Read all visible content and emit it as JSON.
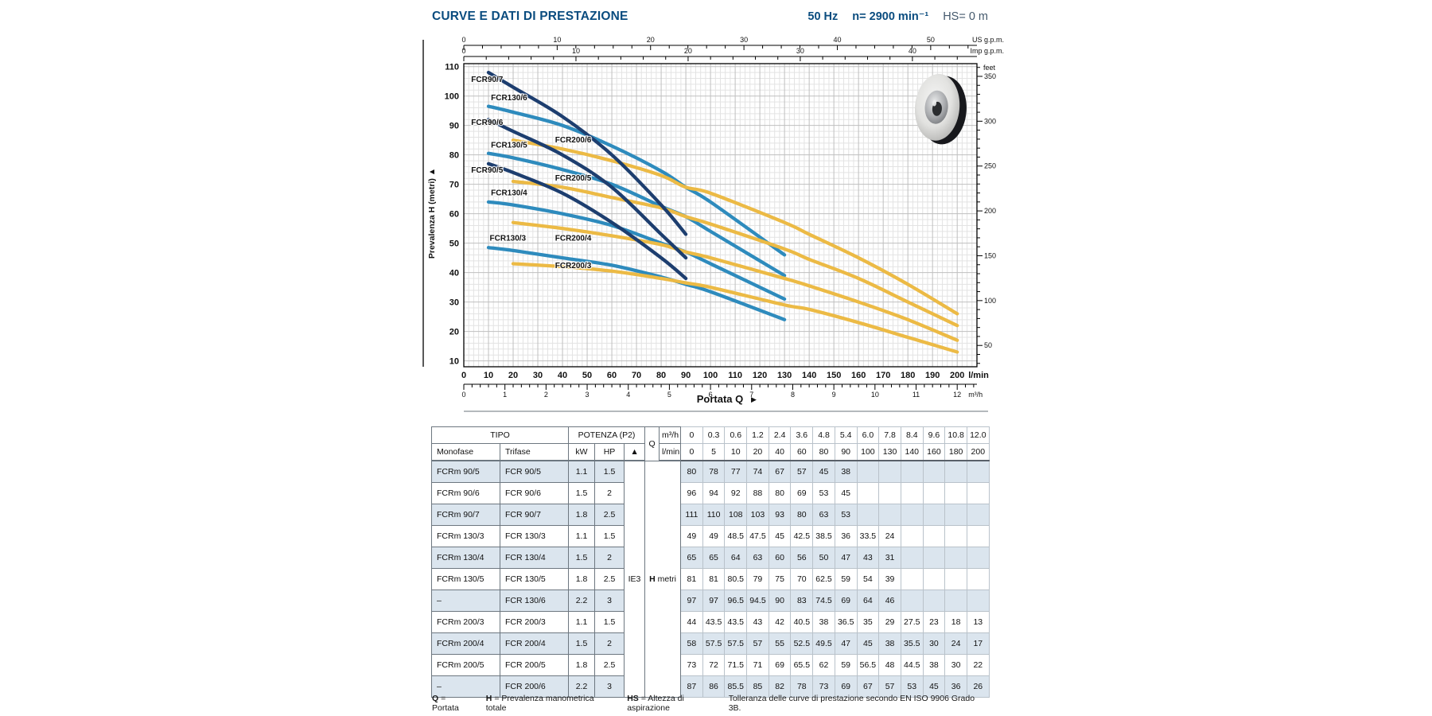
{
  "header": {
    "title": "CURVE E DATI DI PRESTAZIONE",
    "frequency": "50 Hz",
    "speed": "n= 2900 min⁻¹",
    "suction": "HS= 0 m"
  },
  "icons": {
    "up_arrow": "▲",
    "right_arrow": "▶"
  },
  "chart_data": {
    "type": "line",
    "xlabel": "Portata Q",
    "ylabel": "Prevalenza H (metri)",
    "xlim": [
      0,
      208
    ],
    "ylim": [
      8,
      111
    ],
    "grid": {
      "minor_lmin": 2,
      "minor_metri": 2
    },
    "x_axis": {
      "unit": "l/min",
      "ticks": [
        0,
        10,
        20,
        30,
        40,
        50,
        60,
        70,
        80,
        90,
        100,
        110,
        120,
        130,
        140,
        150,
        160,
        170,
        180,
        190,
        200
      ],
      "minor_step": 2
    },
    "x_axis_secondary": {
      "unit": "m³/h",
      "ticks": [
        0,
        1,
        2,
        3,
        4,
        5,
        6,
        7,
        8,
        9,
        10,
        11,
        12
      ],
      "lmin_per_unit": 16.6667,
      "minor_step": 0.2
    },
    "y_axis": {
      "unit": "metri",
      "ticks": [
        10,
        20,
        30,
        40,
        50,
        60,
        70,
        80,
        90,
        100,
        110
      ]
    },
    "right_axis": {
      "label": "feet",
      "ticks": [
        50,
        100,
        150,
        200,
        250,
        300,
        350
      ],
      "m_per_foot": 0.3048,
      "minor_step_feet": 10
    },
    "top_axes": [
      {
        "label": "US g.p.m.",
        "ticks": [
          0,
          10,
          20,
          30,
          40,
          50
        ],
        "lmin_per_unit": 3.785,
        "minor_step": 2
      },
      {
        "label": "Imp g.p.m.",
        "ticks": [
          0,
          10,
          20,
          30,
          40
        ],
        "lmin_per_unit": 4.546,
        "minor_step": 2
      }
    ],
    "series": [
      {
        "name": "FCR130/3",
        "color": "#2e8bbd",
        "x": [
          10,
          20,
          40,
          60,
          80,
          90,
          100,
          130
        ],
        "y": [
          48.5,
          47.5,
          45,
          42.5,
          38.5,
          36,
          33.5,
          24
        ],
        "label_at": [
          10.5,
          50.8
        ]
      },
      {
        "name": "FCR130/4",
        "color": "#2e8bbd",
        "x": [
          10,
          20,
          40,
          60,
          80,
          90,
          100,
          130
        ],
        "y": [
          64,
          63,
          60,
          56,
          50,
          47,
          43,
          31
        ],
        "label_at": [
          11,
          66.2
        ]
      },
      {
        "name": "FCR130/5",
        "color": "#2e8bbd",
        "x": [
          10,
          20,
          40,
          60,
          80,
          90,
          100,
          130
        ],
        "y": [
          80.5,
          79,
          75,
          70,
          62.5,
          59,
          54,
          39
        ],
        "label_at": [
          11,
          82.5
        ]
      },
      {
        "name": "FCR130/6",
        "color": "#2e8bbd",
        "x": [
          10,
          20,
          40,
          60,
          80,
          90,
          100,
          130
        ],
        "y": [
          96.5,
          94.5,
          90,
          83,
          74.5,
          69,
          64,
          46
        ],
        "label_at": [
          11,
          98.5
        ]
      },
      {
        "name": "FCR200/3",
        "color": "#ecba45",
        "x": [
          20,
          40,
          60,
          80,
          90,
          100,
          130,
          140,
          160,
          180,
          200
        ],
        "y": [
          43,
          42,
          40.5,
          38,
          36.5,
          35,
          29,
          27.5,
          23,
          18,
          13
        ],
        "label_at": [
          37,
          41.5
        ]
      },
      {
        "name": "FCR200/4",
        "color": "#ecba45",
        "x": [
          20,
          40,
          60,
          80,
          90,
          100,
          130,
          140,
          160,
          180,
          200
        ],
        "y": [
          57,
          55,
          52.5,
          49.5,
          47,
          45,
          38,
          35.5,
          30,
          24,
          17
        ],
        "label_at": [
          37,
          50.8
        ]
      },
      {
        "name": "FCR200/5",
        "color": "#ecba45",
        "x": [
          20,
          40,
          60,
          80,
          90,
          100,
          130,
          140,
          160,
          180,
          200
        ],
        "y": [
          71,
          69,
          65.5,
          62,
          59,
          56.5,
          48,
          44.5,
          38,
          30,
          22
        ],
        "label_at": [
          37,
          71.2
        ]
      },
      {
        "name": "FCR200/6",
        "color": "#ecba45",
        "x": [
          20,
          40,
          60,
          80,
          90,
          100,
          130,
          140,
          160,
          180,
          200
        ],
        "y": [
          85,
          82,
          78,
          73,
          69,
          67,
          57,
          53,
          45,
          36,
          26
        ],
        "label_at": [
          37,
          84.2
        ]
      },
      {
        "name": "FCR90/5",
        "color": "#1d3e6f",
        "x": [
          10,
          20,
          40,
          60,
          80,
          90
        ],
        "y": [
          77,
          74,
          67,
          57,
          45,
          38
        ],
        "label_at": [
          3,
          74
        ]
      },
      {
        "name": "FCR90/6",
        "color": "#1d3e6f",
        "x": [
          10,
          20,
          40,
          60,
          80,
          90
        ],
        "y": [
          92,
          88,
          80,
          69,
          53,
          45
        ],
        "label_at": [
          3,
          90.2
        ]
      },
      {
        "name": "FCR90/7",
        "color": "#1d3e6f",
        "x": [
          10,
          20,
          40,
          60,
          80,
          90
        ],
        "y": [
          108,
          103,
          93,
          80,
          63,
          53
        ],
        "label_at": [
          3,
          104.8
        ]
      }
    ]
  },
  "table": {
    "headers": {
      "tipo": "TIPO",
      "monofase": "Monofase",
      "trifase": "Trifase",
      "potenza": "POTENZA (P2)",
      "kw": "kW",
      "hp": "HP",
      "q": "Q",
      "m3h": "m³/h",
      "lmin": "l/min",
      "ie3": "IE3",
      "h": "H",
      "metri": "metri"
    },
    "q_m3h": [
      "0",
      "0.3",
      "0.6",
      "1.2",
      "2.4",
      "3.6",
      "4.8",
      "5.4",
      "6.0",
      "7.8",
      "8.4",
      "9.6",
      "10.8",
      "12.0"
    ],
    "q_lmin": [
      "0",
      "5",
      "10",
      "20",
      "40",
      "60",
      "80",
      "90",
      "100",
      "130",
      "140",
      "160",
      "180",
      "200"
    ],
    "rows": [
      {
        "monofase": "FCRm 90/5",
        "trifase": "FCR 90/5",
        "kw": "1.1",
        "hp": "1.5",
        "h_values": [
          "80",
          "78",
          "77",
          "74",
          "67",
          "57",
          "45",
          "38",
          "",
          "",
          "",
          "",
          "",
          ""
        ]
      },
      {
        "monofase": "FCRm 90/6",
        "trifase": "FCR 90/6",
        "kw": "1.5",
        "hp": "2",
        "h_values": [
          "96",
          "94",
          "92",
          "88",
          "80",
          "69",
          "53",
          "45",
          "",
          "",
          "",
          "",
          "",
          ""
        ]
      },
      {
        "monofase": "FCRm 90/7",
        "trifase": "FCR 90/7",
        "kw": "1.8",
        "hp": "2.5",
        "h_values": [
          "111",
          "110",
          "108",
          "103",
          "93",
          "80",
          "63",
          "53",
          "",
          "",
          "",
          "",
          "",
          ""
        ]
      },
      {
        "monofase": "FCRm 130/3",
        "trifase": "FCR 130/3",
        "kw": "1.1",
        "hp": "1.5",
        "h_values": [
          "49",
          "49",
          "48.5",
          "47.5",
          "45",
          "42.5",
          "38.5",
          "36",
          "33.5",
          "24",
          "",
          "",
          "",
          ""
        ]
      },
      {
        "monofase": "FCRm 130/4",
        "trifase": "FCR 130/4",
        "kw": "1.5",
        "hp": "2",
        "h_values": [
          "65",
          "65",
          "64",
          "63",
          "60",
          "56",
          "50",
          "47",
          "43",
          "31",
          "",
          "",
          "",
          ""
        ]
      },
      {
        "monofase": "FCRm 130/5",
        "trifase": "FCR 130/5",
        "kw": "1.8",
        "hp": "2.5",
        "h_values": [
          "81",
          "81",
          "80.5",
          "79",
          "75",
          "70",
          "62.5",
          "59",
          "54",
          "39",
          "",
          "",
          "",
          ""
        ]
      },
      {
        "monofase": "–",
        "trifase": "FCR 130/6",
        "kw": "2.2",
        "hp": "3",
        "h_values": [
          "97",
          "97",
          "96.5",
          "94.5",
          "90",
          "83",
          "74.5",
          "69",
          "64",
          "46",
          "",
          "",
          "",
          ""
        ]
      },
      {
        "monofase": "FCRm 200/3",
        "trifase": "FCR 200/3",
        "kw": "1.1",
        "hp": "1.5",
        "h_values": [
          "44",
          "43.5",
          "43.5",
          "43",
          "42",
          "40.5",
          "38",
          "36.5",
          "35",
          "29",
          "27.5",
          "23",
          "18",
          "13"
        ]
      },
      {
        "monofase": "FCRm 200/4",
        "trifase": "FCR 200/4",
        "kw": "1.5",
        "hp": "2",
        "h_values": [
          "58",
          "57.5",
          "57.5",
          "57",
          "55",
          "52.5",
          "49.5",
          "47",
          "45",
          "38",
          "35.5",
          "30",
          "24",
          "17"
        ]
      },
      {
        "monofase": "FCRm 200/5",
        "trifase": "FCR 200/5",
        "kw": "1.8",
        "hp": "2.5",
        "h_values": [
          "73",
          "72",
          "71.5",
          "71",
          "69",
          "65.5",
          "62",
          "59",
          "56.5",
          "48",
          "44.5",
          "38",
          "30",
          "22"
        ]
      },
      {
        "monofase": "–",
        "trifase": "FCR 200/6",
        "kw": "2.2",
        "hp": "3",
        "h_values": [
          "87",
          "86",
          "85.5",
          "85",
          "82",
          "78",
          "73",
          "69",
          "67",
          "57",
          "53",
          "45",
          "36",
          "26"
        ]
      }
    ]
  },
  "footer": {
    "legend": {
      "q_key": "Q",
      "q_val": "= Portata",
      "h_key": "H",
      "h_val": "= Prevalenza manometrica totale",
      "hs_key": "HS",
      "hs_val": "= Altezza di aspirazione"
    },
    "tolerance": "Tolleranza delle curve di prestazione secondo EN ISO 9906 Grado 3B."
  }
}
